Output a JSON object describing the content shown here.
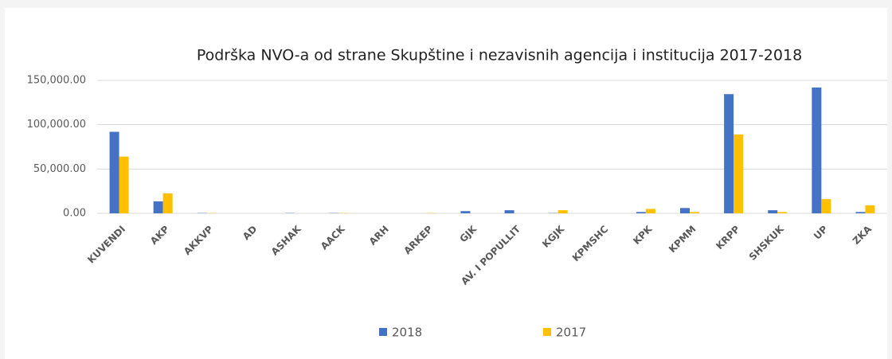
{
  "chart_data": {
    "type": "bar",
    "title": "Podrška NVO-a od strane Skupštine i nezavisnih agencija i institucija 2017-2018",
    "categories": [
      "KUVENDI",
      "AKP",
      "AKKVP",
      "AD",
      "ASHAK",
      "AACK",
      "ARH",
      "ARKEP",
      "GJK",
      "AV. I POPULLIT",
      "KGJK",
      "KPMSHC",
      "KPK",
      "KPMM",
      "KRPP",
      "SHSKUK",
      "UP",
      "ZKA"
    ],
    "series": [
      {
        "name": "2018",
        "color": "#4472c4",
        "values": [
          92000,
          13500,
          300,
          0,
          300,
          300,
          0,
          0,
          2500,
          3500,
          300,
          0,
          1500,
          6000,
          134500,
          3500,
          142000,
          1500
        ]
      },
      {
        "name": "2017",
        "color": "#ffc000",
        "values": [
          64000,
          22500,
          300,
          0,
          0,
          300,
          0,
          300,
          0,
          0,
          3500,
          0,
          5000,
          1500,
          89000,
          1500,
          16000,
          9000
        ]
      }
    ],
    "ylim": [
      0,
      150000
    ],
    "yticks": [
      {
        "value": 0,
        "label": "0.00"
      },
      {
        "value": 50000,
        "label": "50,000.00"
      },
      {
        "value": 100000,
        "label": "100,000.00"
      },
      {
        "value": 150000,
        "label": "150,000.00"
      }
    ],
    "grid": true,
    "legend": "bottom"
  }
}
